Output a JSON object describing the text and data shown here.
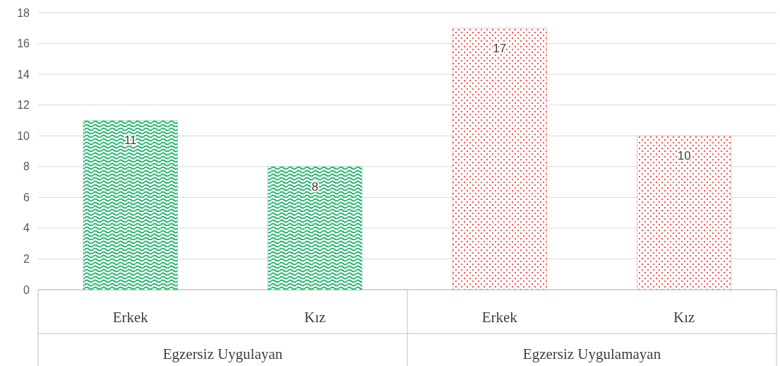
{
  "chart_data": {
    "type": "bar",
    "categories": [
      "Erkek",
      "Kız",
      "Erkek",
      "Kız"
    ],
    "values": [
      11,
      8,
      17,
      10
    ],
    "colors": [
      "#1fb36a",
      "#1fb36a",
      "#ff4a4a",
      "#ff4a4a"
    ],
    "ylim": [
      0,
      18
    ],
    "yticks": [
      0,
      2,
      4,
      6,
      8,
      10,
      12,
      14,
      16,
      18
    ],
    "grid": "y",
    "data_labels": true,
    "annotations": [
      "Egzersiz Uygulayan",
      "Egzersiz Uygulamayan"
    ]
  }
}
